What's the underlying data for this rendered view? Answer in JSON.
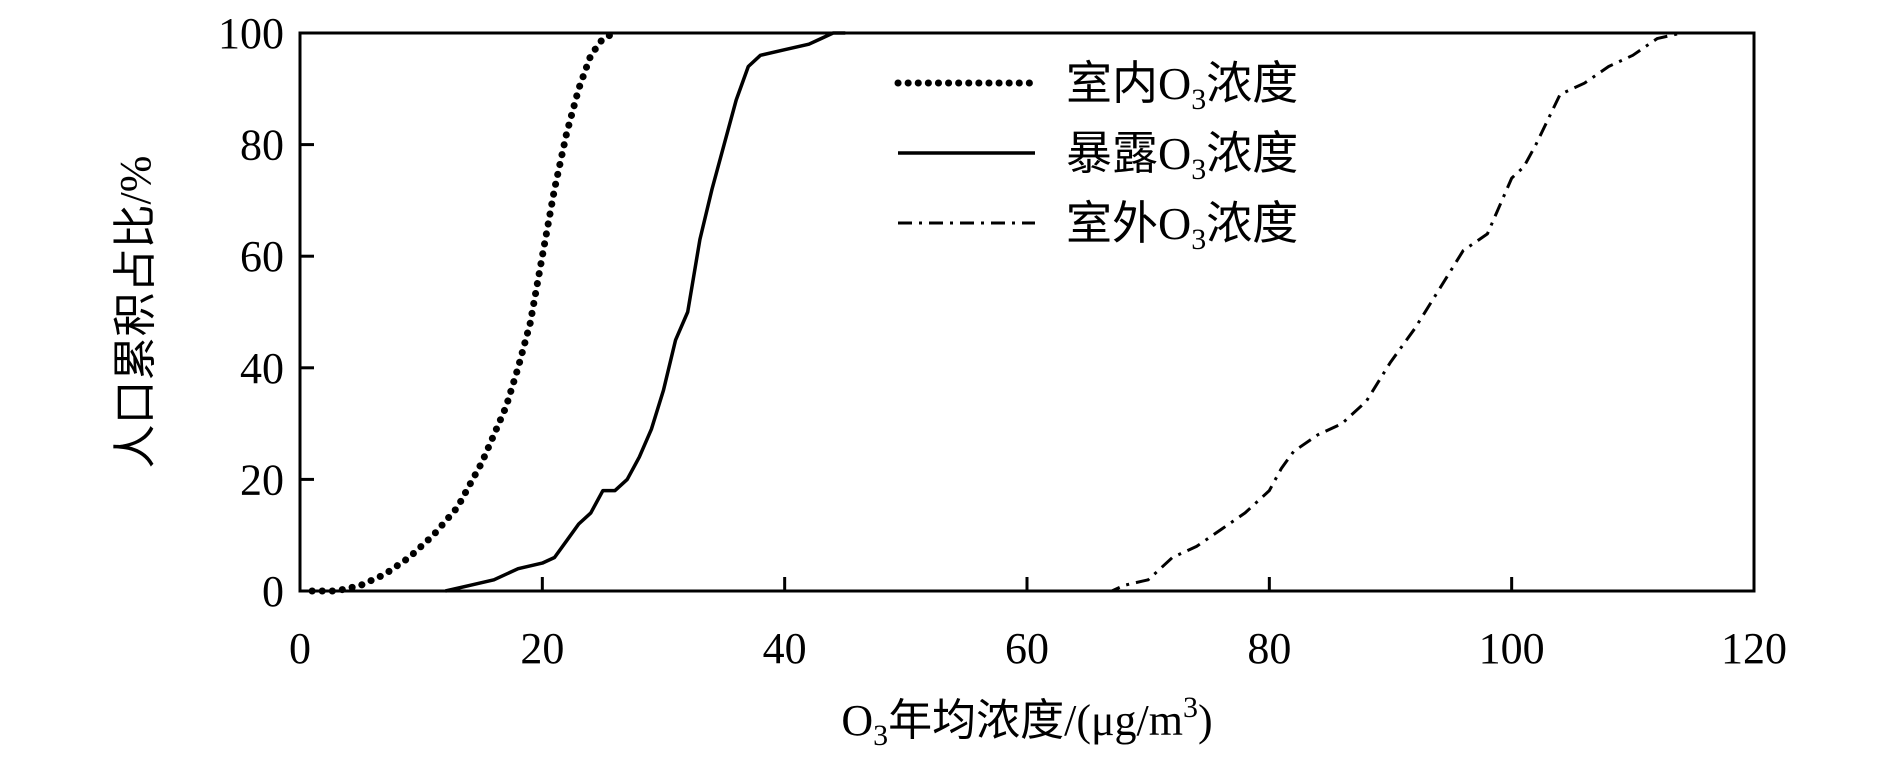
{
  "chart_data": {
    "type": "line",
    "xlabel": {
      "prefix": "O",
      "sub": "3",
      "main": "年均浓度/(μg/m",
      "sup": "3",
      "suffix": ")"
    },
    "ylabel": "人口累积占比/%",
    "xlim": [
      0,
      120
    ],
    "ylim": [
      0,
      100
    ],
    "x_ticks": [
      0,
      20,
      40,
      60,
      80,
      100,
      120
    ],
    "y_ticks": [
      0,
      20,
      40,
      60,
      80,
      100
    ],
    "grid": false,
    "legend_position": "top-center",
    "series": [
      {
        "name": "室内O3浓度",
        "label": {
          "pre": "室内O",
          "sub": "3",
          "post": "浓度"
        },
        "style": "dotted",
        "color": "#000000",
        "points": [
          [
            1,
            0
          ],
          [
            3,
            0
          ],
          [
            5,
            1
          ],
          [
            7,
            3
          ],
          [
            9,
            6
          ],
          [
            11,
            10
          ],
          [
            13,
            15
          ],
          [
            14,
            19
          ],
          [
            15,
            23
          ],
          [
            16,
            28
          ],
          [
            17,
            33
          ],
          [
            18,
            40
          ],
          [
            19,
            48
          ],
          [
            20,
            60
          ],
          [
            21,
            72
          ],
          [
            22,
            82
          ],
          [
            23,
            90
          ],
          [
            24,
            96
          ],
          [
            25,
            99
          ],
          [
            26,
            100
          ]
        ]
      },
      {
        "name": "暴露O3浓度",
        "label": {
          "pre": "暴露O",
          "sub": "3",
          "post": "浓度"
        },
        "style": "solid",
        "color": "#000000",
        "points": [
          [
            12,
            0
          ],
          [
            14,
            1
          ],
          [
            16,
            2
          ],
          [
            18,
            4
          ],
          [
            20,
            5
          ],
          [
            21,
            6
          ],
          [
            22,
            9
          ],
          [
            23,
            12
          ],
          [
            24,
            14
          ],
          [
            25,
            18
          ],
          [
            26,
            18
          ],
          [
            27,
            20
          ],
          [
            28,
            24
          ],
          [
            29,
            29
          ],
          [
            30,
            36
          ],
          [
            31,
            45
          ],
          [
            32,
            50
          ],
          [
            33,
            63
          ],
          [
            34,
            72
          ],
          [
            35,
            80
          ],
          [
            36,
            88
          ],
          [
            37,
            94
          ],
          [
            38,
            96
          ],
          [
            40,
            97
          ],
          [
            42,
            98
          ],
          [
            43,
            99
          ],
          [
            44,
            100
          ],
          [
            45,
            100
          ]
        ]
      },
      {
        "name": "室外O3浓度",
        "label": {
          "pre": "室外O",
          "sub": "3",
          "post": "浓度"
        },
        "style": "dashdot",
        "color": "#000000",
        "points": [
          [
            64,
            0
          ],
          [
            67,
            0
          ],
          [
            68,
            1
          ],
          [
            70,
            2
          ],
          [
            72,
            6
          ],
          [
            74,
            8
          ],
          [
            76,
            11
          ],
          [
            78,
            14
          ],
          [
            80,
            18
          ],
          [
            81,
            22
          ],
          [
            82,
            25
          ],
          [
            84,
            28
          ],
          [
            86,
            30
          ],
          [
            88,
            34
          ],
          [
            90,
            41
          ],
          [
            92,
            47
          ],
          [
            94,
            54
          ],
          [
            96,
            61
          ],
          [
            98,
            64
          ],
          [
            100,
            74
          ],
          [
            101,
            76
          ],
          [
            102,
            80
          ],
          [
            104,
            89
          ],
          [
            106,
            91
          ],
          [
            108,
            94
          ],
          [
            110,
            96
          ],
          [
            112,
            99
          ],
          [
            114,
            100
          ]
        ]
      }
    ]
  }
}
